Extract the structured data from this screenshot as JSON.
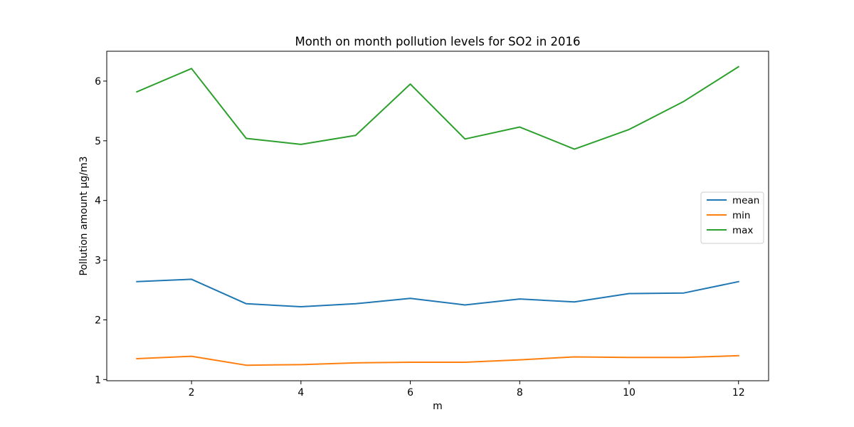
{
  "chart_data": {
    "type": "line",
    "title": "Month on month pollution levels for SO2 in 2016",
    "xlabel": "m",
    "ylabel": "Pollution amount µg/m3",
    "x": [
      1,
      2,
      3,
      4,
      5,
      6,
      7,
      8,
      9,
      10,
      11,
      12
    ],
    "xlim": [
      0.45,
      12.55
    ],
    "ylim": [
      0.98,
      6.5
    ],
    "xticks": [
      2,
      4,
      6,
      8,
      10,
      12
    ],
    "yticks": [
      1,
      2,
      3,
      4,
      5,
      6
    ],
    "grid": false,
    "legend_position": "center-right",
    "series": [
      {
        "name": "mean",
        "color": "#1f77b4",
        "values": [
          2.64,
          2.68,
          2.27,
          2.22,
          2.27,
          2.36,
          2.25,
          2.35,
          2.3,
          2.44,
          2.45,
          2.64
        ]
      },
      {
        "name": "min",
        "color": "#ff7f0e",
        "values": [
          1.35,
          1.39,
          1.24,
          1.25,
          1.28,
          1.29,
          1.29,
          1.33,
          1.38,
          1.37,
          1.37,
          1.4
        ]
      },
      {
        "name": "max",
        "color": "#2ca02c",
        "values": [
          5.82,
          6.21,
          5.04,
          4.94,
          5.09,
          5.95,
          5.03,
          5.23,
          4.86,
          5.19,
          5.66,
          6.24
        ]
      }
    ]
  }
}
